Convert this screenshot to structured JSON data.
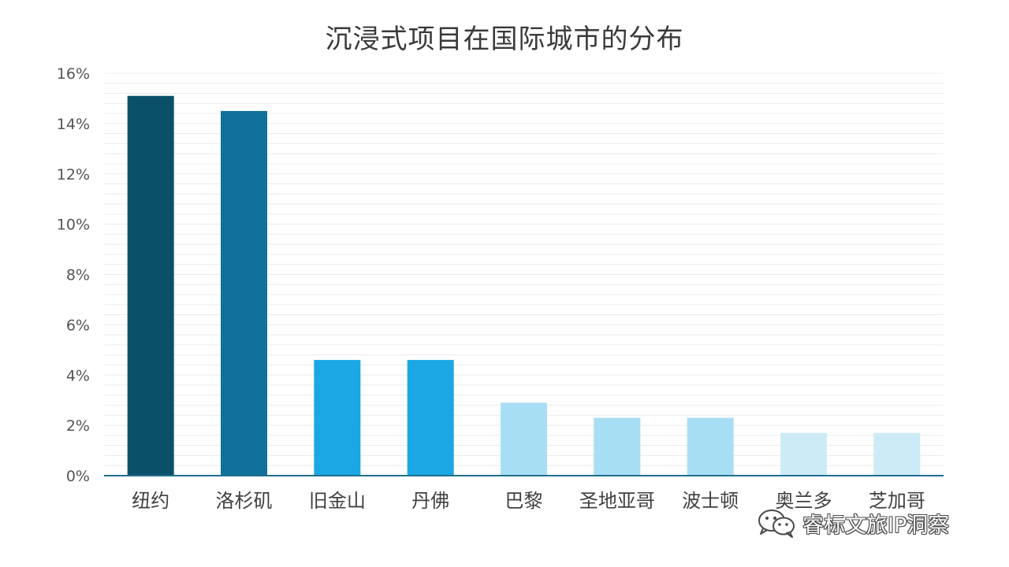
{
  "chart_data": {
    "type": "bar",
    "title": "沉浸式项目在国际城市的分布",
    "categories": [
      "纽约",
      "洛杉矶",
      "旧金山",
      "丹佛",
      "巴黎",
      "圣地亚哥",
      "波士顿",
      "奥兰多",
      "芝加哥"
    ],
    "values": [
      15.1,
      14.5,
      4.6,
      4.6,
      2.9,
      2.3,
      2.3,
      1.7,
      1.7
    ],
    "colors": [
      "#0b5069",
      "#11719b",
      "#1ba7e3",
      "#1ba7e3",
      "#a8def4",
      "#a8def4",
      "#a8def4",
      "#cdebf7",
      "#cdebf7"
    ],
    "yticks": [
      "0%",
      "2%",
      "4%",
      "6%",
      "8%",
      "10%",
      "12%",
      "14%",
      "16%"
    ],
    "ylim": [
      0,
      16
    ],
    "xlabel": "",
    "ylabel": "",
    "grid": true,
    "axis_color": "#1f6f8f",
    "grid_color": "#ececec"
  },
  "watermark": {
    "text": "睿标文旅IP洞察",
    "icon": "wechat-icon"
  }
}
